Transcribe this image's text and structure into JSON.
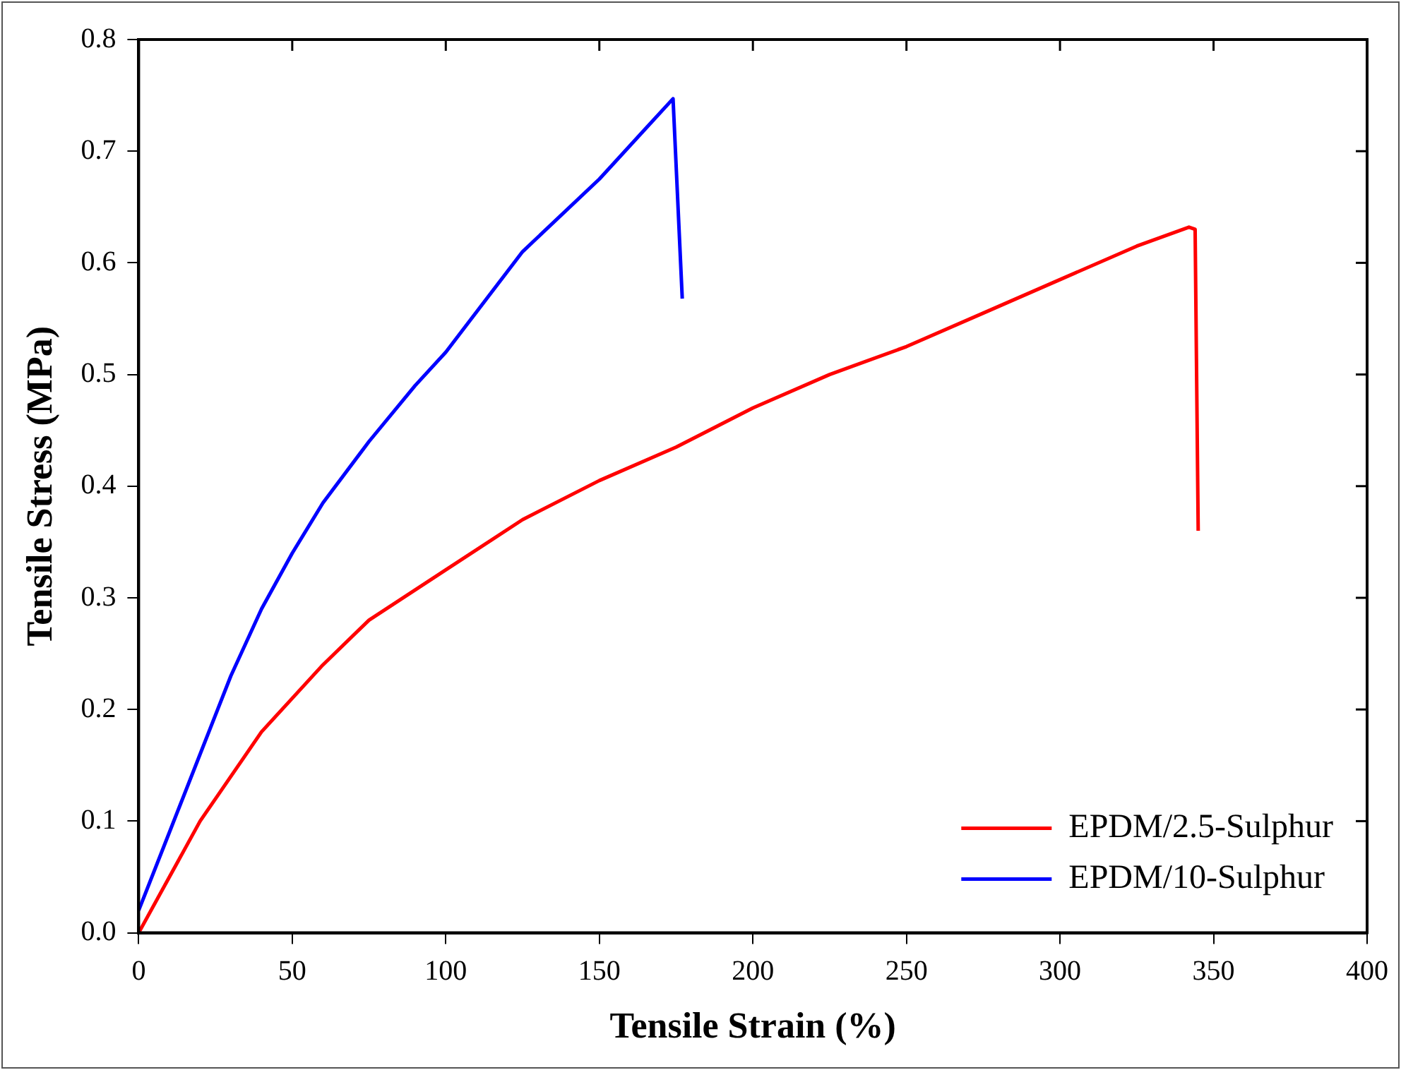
{
  "chart_data": {
    "type": "line",
    "xlabel": "Tensile Strain (%)",
    "ylabel": "Tensile Stress (MPa)",
    "xlim": [
      0,
      400
    ],
    "xticks": [
      0,
      50,
      100,
      150,
      200,
      250,
      300,
      350,
      400
    ],
    "ylim": [
      0,
      0.8
    ],
    "yticks": [
      {
        "value": 0,
        "label": "0.0"
      },
      0.1,
      0.2,
      0.3,
      0.4,
      0.5,
      0.6,
      0.7,
      0.8
    ],
    "grid": false,
    "legend": "bottom right",
    "marker": "none",
    "line_style": "solid",
    "series": [
      {
        "name": "EPDM/2.5-Sulphur",
        "color": "#ff0000",
        "x": [
          0,
          10,
          20,
          30,
          40,
          50,
          60,
          75,
          100,
          125,
          150,
          175,
          200,
          225,
          250,
          275,
          300,
          325,
          342,
          344,
          345
        ],
        "values": [
          0,
          0.05,
          0.1,
          0.14,
          0.18,
          0.21,
          0.24,
          0.28,
          0.325,
          0.37,
          0.405,
          0.435,
          0.47,
          0.5,
          0.525,
          0.555,
          0.585,
          0.615,
          0.632,
          0.63,
          0.36
        ]
      },
      {
        "name": "EPDM/10-Sulphur",
        "color": "#0000ff",
        "x": [
          0,
          10,
          20,
          30,
          40,
          50,
          60,
          75,
          90,
          100,
          125,
          150,
          165,
          174,
          177
        ],
        "values": [
          0.02,
          0.09,
          0.16,
          0.23,
          0.29,
          0.34,
          0.385,
          0.44,
          0.49,
          0.52,
          0.61,
          0.675,
          0.72,
          0.747,
          0.568
        ]
      }
    ]
  }
}
